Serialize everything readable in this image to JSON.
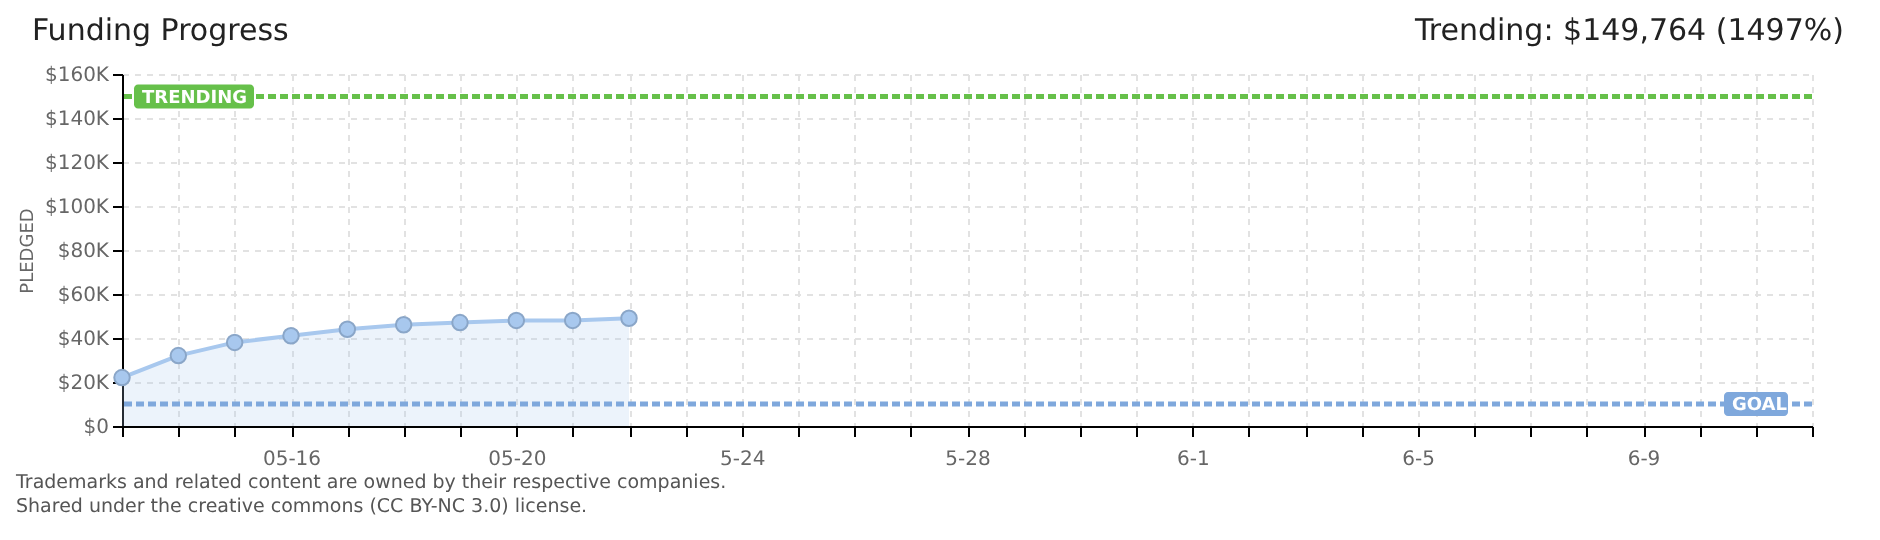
{
  "chart_data": {
    "type": "area",
    "title": "Funding Progress",
    "ylabel": "PLEDGED",
    "annotations": [
      "Trending: $149,764 (1497%)",
      "Trademarks and related content are owned by their respective companies.",
      "Shared under the creative commons (CC BY-NC 3.0) license."
    ],
    "x": [
      "--05-13",
      "--05-14",
      "--05-15",
      "--05-16",
      "--05-17",
      "--05-18",
      "--05-19",
      "--05-20",
      "--05-21",
      "--05-22"
    ],
    "series": [
      {
        "color": "#a8c8ee",
        "values": [
          22000,
          32000,
          38000,
          41000,
          44000,
          46000,
          47000,
          48000,
          48000,
          49000
        ]
      }
    ],
    "xlim": [
      "--05-13",
      "--06-12"
    ],
    "xticks": [
      {
        "value": "--05-13",
        "label": null
      },
      {
        "value": "--05-14",
        "label": null
      },
      {
        "value": "--05-15",
        "label": null
      },
      {
        "value": "--05-16",
        "label": "05-16"
      },
      {
        "value": "--05-17",
        "label": null
      },
      {
        "value": "--05-18",
        "label": null
      },
      {
        "value": "--05-19",
        "label": null
      },
      {
        "value": "--05-20",
        "label": "05-20"
      },
      {
        "value": "--05-21",
        "label": null
      },
      {
        "value": "--05-22",
        "label": null
      },
      {
        "value": "--05-23",
        "label": null
      },
      {
        "value": "--05-24",
        "label": "5-24"
      },
      {
        "value": "--05-25",
        "label": null
      },
      {
        "value": "--05-26",
        "label": null
      },
      {
        "value": "--05-27",
        "label": null
      },
      {
        "value": "--05-28",
        "label": "5-28"
      },
      {
        "value": "--05-29",
        "label": null
      },
      {
        "value": "--05-30",
        "label": null
      },
      {
        "value": "--05-31",
        "label": null
      },
      {
        "value": "--06-01",
        "label": "6-1"
      },
      {
        "value": "--06-02",
        "label": null
      },
      {
        "value": "--06-03",
        "label": null
      },
      {
        "value": "--06-04",
        "label": null
      },
      {
        "value": "--06-05",
        "label": "6-5"
      },
      {
        "value": "--06-06",
        "label": null
      },
      {
        "value": "--06-07",
        "label": null
      },
      {
        "value": "--06-08",
        "label": null
      },
      {
        "value": "--06-09",
        "label": "6-9"
      },
      {
        "value": "--06-10",
        "label": null
      },
      {
        "value": "--06-11",
        "label": null
      },
      {
        "value": "--06-12",
        "label": null
      }
    ],
    "ylim": [
      0,
      160000
    ],
    "yticks": [
      {
        "value": 0,
        "label": "$0"
      },
      {
        "value": 20000,
        "label": "$20K"
      },
      {
        "value": 40000,
        "label": "$40K"
      },
      {
        "value": 60000,
        "label": "$60K"
      },
      {
        "value": 80000,
        "label": "$80K"
      },
      {
        "value": 100000,
        "label": "$100K"
      },
      {
        "value": 120000,
        "label": "$120K"
      },
      {
        "value": 140000,
        "label": "$140K"
      },
      {
        "value": 160000,
        "label": "$160K"
      }
    ],
    "ref_lines": [
      {
        "axis": "y",
        "value": 149764,
        "label": "TRENDING",
        "color": "#66c04a",
        "line_style": "dashed"
      },
      {
        "axis": "y",
        "value": 10000,
        "label": "GOAL",
        "color": "#7fa8dc",
        "line_style": "dashed"
      }
    ],
    "grid": true,
    "marker": "circle"
  }
}
